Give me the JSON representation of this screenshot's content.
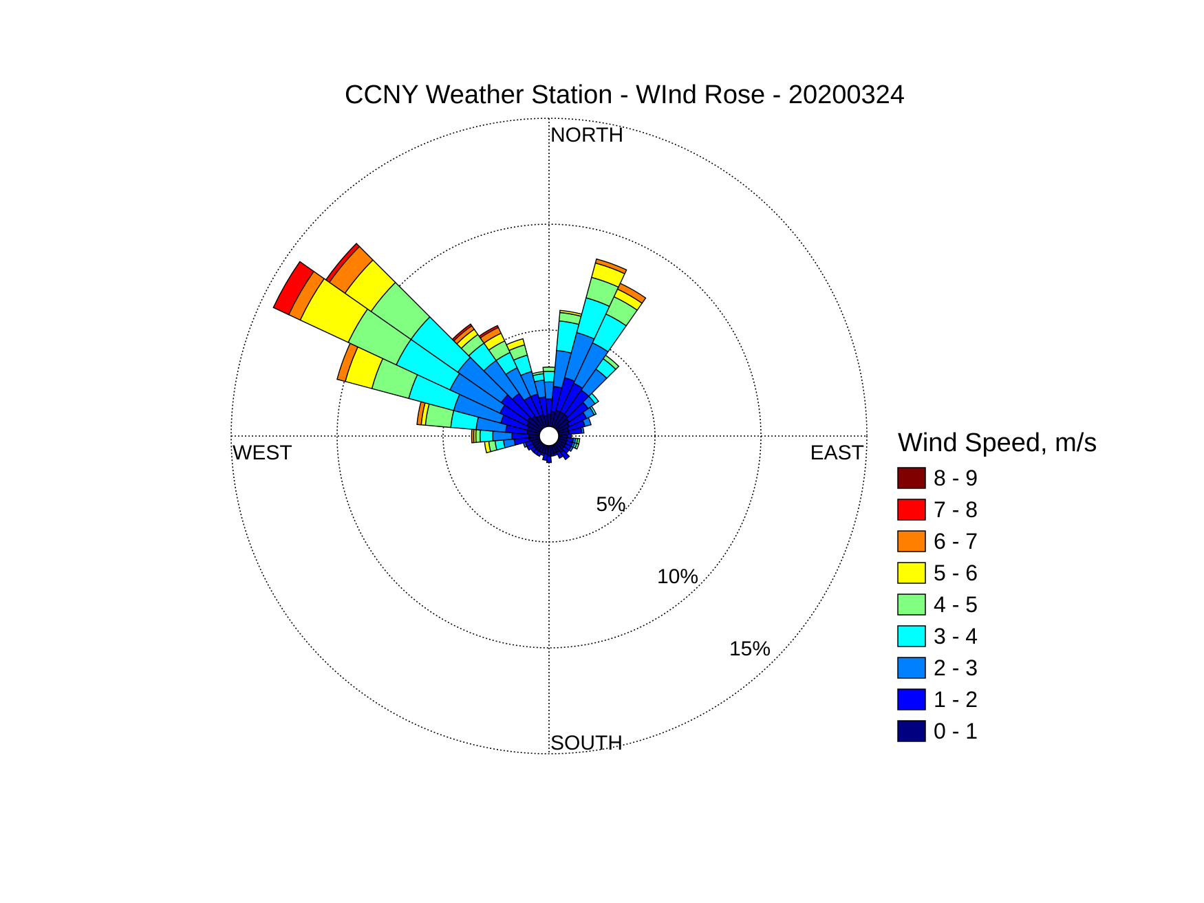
{
  "chart_data": {
    "type": "windrose",
    "title": "CCNY Weather Station - WInd Rose - 20200324",
    "compass_labels": {
      "north": "NORTH",
      "east": "EAST",
      "south": "SOUTH",
      "west": "WEST"
    },
    "radial_ticks": [
      {
        "value": 5,
        "label": "5%"
      },
      {
        "value": 10,
        "label": "10%"
      },
      {
        "value": 15,
        "label": "15%"
      }
    ],
    "radial_max": 15,
    "direction_bins": 36,
    "legend": {
      "title": "Wind Speed, m/s",
      "placement": "right",
      "bins": [
        {
          "label": "8 - 9",
          "color": "#800000"
        },
        {
          "label": "7 - 8",
          "color": "#ff0000"
        },
        {
          "label": "6 - 7",
          "color": "#ff8000"
        },
        {
          "label": "5 - 6",
          "color": "#ffff00"
        },
        {
          "label": "4 - 5",
          "color": "#80ff80"
        },
        {
          "label": "3 - 4",
          "color": "#00ffff"
        },
        {
          "label": "2 - 3",
          "color": "#0080ff"
        },
        {
          "label": "1 - 2",
          "color": "#0000ff"
        },
        {
          "label": "0 - 1",
          "color": "#000080"
        }
      ]
    },
    "speed_bin_order": [
      "0 - 1",
      "1 - 2",
      "2 - 3",
      "3 - 4",
      "4 - 5",
      "5 - 6",
      "6 - 7",
      "7 - 8",
      "8 - 9"
    ],
    "directions": [
      {
        "dir": 0,
        "counts": [
          0.6,
          0.7,
          0.8,
          0.5,
          0.2,
          0,
          0,
          0,
          0
        ]
      },
      {
        "dir": 10,
        "counts": [
          0.7,
          1.2,
          1.7,
          1.4,
          0.4,
          0.1,
          0,
          0,
          0
        ]
      },
      {
        "dir": 20,
        "counts": [
          0.8,
          1.6,
          2.2,
          1.7,
          1.0,
          0.7,
          0.2,
          0,
          0
        ]
      },
      {
        "dir": 30,
        "counts": [
          0.8,
          1.5,
          2.1,
          1.5,
          0.9,
          0.4,
          0.3,
          0,
          0
        ]
      },
      {
        "dir": 40,
        "counts": [
          0.8,
          1.4,
          1.2,
          0.6,
          0.2,
          0,
          0,
          0,
          0
        ]
      },
      {
        "dir": 50,
        "counts": [
          0.7,
          1.1,
          0.4,
          0.2,
          0,
          0,
          0,
          0,
          0
        ]
      },
      {
        "dir": 60,
        "counts": [
          0.6,
          0.9,
          0.4,
          0.1,
          0,
          0,
          0,
          0,
          0
        ]
      },
      {
        "dir": 70,
        "counts": [
          0.5,
          0.8,
          0.3,
          0,
          0,
          0,
          0,
          0,
          0
        ]
      },
      {
        "dir": 80,
        "counts": [
          0.5,
          0.6,
          0.1,
          0,
          0,
          0,
          0,
          0,
          0
        ]
      },
      {
        "dir": 90,
        "counts": [
          0.4,
          0.2,
          0,
          0,
          0,
          0,
          0,
          0,
          0
        ]
      },
      {
        "dir": 100,
        "counts": [
          0.4,
          0.3,
          0.1,
          0.1,
          0.1,
          0,
          0,
          0,
          0
        ]
      },
      {
        "dir": 110,
        "counts": [
          0.4,
          0.3,
          0.1,
          0.1,
          0.1,
          0,
          0,
          0,
          0
        ]
      },
      {
        "dir": 120,
        "counts": [
          0.4,
          0.3,
          0.1,
          0,
          0,
          0,
          0,
          0,
          0
        ]
      },
      {
        "dir": 130,
        "counts": [
          0.4,
          0.3,
          0,
          0,
          0,
          0,
          0,
          0,
          0
        ]
      },
      {
        "dir": 140,
        "counts": [
          0.5,
          0.4,
          0,
          0,
          0,
          0,
          0,
          0,
          0
        ]
      },
      {
        "dir": 150,
        "counts": [
          0.4,
          0.3,
          0,
          0,
          0,
          0,
          0,
          0,
          0
        ]
      },
      {
        "dir": 160,
        "counts": [
          0.4,
          0.1,
          0,
          0,
          0,
          0,
          0,
          0,
          0
        ]
      },
      {
        "dir": 170,
        "counts": [
          0.4,
          0.1,
          0,
          0,
          0,
          0,
          0,
          0,
          0
        ]
      },
      {
        "dir": 180,
        "counts": [
          0.5,
          0.3,
          0,
          0,
          0,
          0,
          0,
          0,
          0
        ]
      },
      {
        "dir": 190,
        "counts": [
          0.4,
          0.3,
          0,
          0,
          0,
          0,
          0,
          0,
          0
        ]
      },
      {
        "dir": 200,
        "counts": [
          0.4,
          0.1,
          0,
          0,
          0,
          0,
          0,
          0,
          0
        ]
      },
      {
        "dir": 210,
        "counts": [
          0.4,
          0.2,
          0,
          0,
          0,
          0,
          0,
          0,
          0
        ]
      },
      {
        "dir": 220,
        "counts": [
          0.4,
          0.2,
          0,
          0,
          0,
          0,
          0,
          0,
          0
        ]
      },
      {
        "dir": 230,
        "counts": [
          0.4,
          0.2,
          0,
          0,
          0,
          0,
          0,
          0,
          0
        ]
      },
      {
        "dir": 240,
        "counts": [
          0.4,
          0.3,
          0,
          0,
          0,
          0,
          0,
          0,
          0
        ]
      },
      {
        "dir": 250,
        "counts": [
          0.4,
          0.3,
          0.1,
          0,
          0,
          0,
          0,
          0,
          0
        ]
      },
      {
        "dir": 260,
        "counts": [
          0.5,
          0.7,
          0.5,
          0.4,
          0.3,
          0.2,
          0,
          0,
          0
        ]
      },
      {
        "dir": 270,
        "counts": [
          0.5,
          0.8,
          0.9,
          0.6,
          0.2,
          0.1,
          0.1,
          0,
          0
        ]
      },
      {
        "dir": 280,
        "counts": [
          0.6,
          1.0,
          1.4,
          1.2,
          1.2,
          0.2,
          0.2,
          0,
          0
        ]
      },
      {
        "dir": 290,
        "counts": [
          0.6,
          1.3,
          2.3,
          2.2,
          1.8,
          1.3,
          0.4,
          0,
          0
        ]
      },
      {
        "dir": 300,
        "counts": [
          0.7,
          1.4,
          2.6,
          2.8,
          2.5,
          2.5,
          0.6,
          0.8,
          0
        ]
      },
      {
        "dir": 310,
        "counts": [
          0.8,
          1.5,
          2.5,
          2.7,
          2.3,
          1.5,
          0.9,
          0.2,
          0
        ]
      },
      {
        "dir": 320,
        "counts": [
          0.7,
          1.3,
          1.9,
          1.0,
          0.5,
          0.3,
          0.2,
          0.1,
          0
        ]
      },
      {
        "dir": 330,
        "counts": [
          0.6,
          1.0,
          1.5,
          0.8,
          0.6,
          0.4,
          0.3,
          0.1,
          0
        ]
      },
      {
        "dir": 340,
        "counts": [
          0.6,
          1.0,
          1.1,
          0.8,
          0.5,
          0.3,
          0,
          0,
          0
        ]
      },
      {
        "dir": 350,
        "counts": [
          0.5,
          0.9,
          0.8,
          0.3,
          0.1,
          0,
          0,
          0,
          0
        ]
      }
    ]
  }
}
